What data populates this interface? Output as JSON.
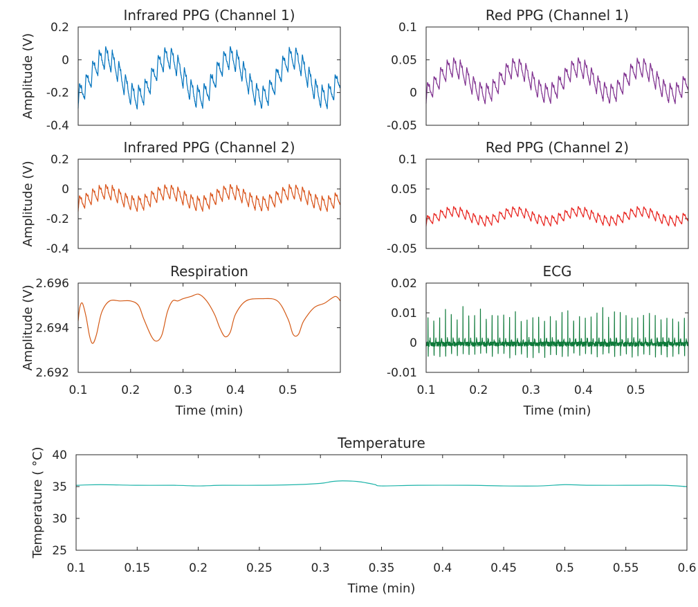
{
  "chart_data": [
    {
      "type": "line",
      "title": "Infrared PPG (Channel 1)",
      "ylabel": "Amplitude (V)",
      "xlabel": "",
      "xlim": [
        0.1,
        0.6
      ],
      "ylim": [
        -0.4,
        0.2
      ],
      "yticks": [
        "0.2",
        "0",
        "-0.2",
        "-0.4"
      ],
      "xticks": [],
      "color": "#0072BD",
      "signal": {
        "beats": 40,
        "respiration_cycles": 4.2,
        "baseline": -0.11,
        "resp_amplitude": 0.12,
        "pulse_amplitude": 0.14
      }
    },
    {
      "type": "line",
      "title": "Red PPG (Channel 1)",
      "ylabel": "",
      "xlabel": "",
      "xlim": [
        0.1,
        0.6
      ],
      "ylim": [
        -0.05,
        0.1
      ],
      "yticks": [
        "0.1",
        "0.05",
        "0",
        "-0.05"
      ],
      "xticks": [],
      "color": "#7E2F8E",
      "signal": {
        "beats": 40,
        "respiration_cycles": 4.2,
        "baseline": 0.018,
        "resp_amplitude": 0.02,
        "pulse_amplitude": 0.03
      }
    },
    {
      "type": "line",
      "title": "Infrared PPG (Channel 2)",
      "ylabel": "Amplitude (V)",
      "xlabel": "",
      "xlim": [
        0.1,
        0.6
      ],
      "ylim": [
        -0.4,
        0.2
      ],
      "yticks": [
        "0.2",
        "0",
        "-0.2",
        "-0.4"
      ],
      "xticks": [],
      "color": "#D95319",
      "signal": {
        "beats": 40,
        "respiration_cycles": 4.2,
        "baseline": -0.06,
        "resp_amplitude": 0.04,
        "pulse_amplitude": 0.1
      }
    },
    {
      "type": "line",
      "title": "Red PPG (Channel 2)",
      "ylabel": "",
      "xlabel": "",
      "xlim": [
        0.1,
        0.6
      ],
      "ylim": [
        -0.05,
        0.1
      ],
      "yticks": [
        "0.1",
        "0.05",
        "0",
        "-0.05"
      ],
      "xticks": [],
      "color": "#E8231E",
      "signal": {
        "beats": 40,
        "respiration_cycles": 4.2,
        "baseline": 0.004,
        "resp_amplitude": 0.008,
        "pulse_amplitude": 0.017
      }
    },
    {
      "type": "line",
      "title": "Respiration",
      "ylabel": "Amplitude (V)",
      "xlabel": "Time (min)",
      "xlim": [
        0.1,
        0.6
      ],
      "ylim": [
        2.692,
        2.696
      ],
      "yticks": [
        "2.696",
        "2.694",
        "2.692"
      ],
      "xticks": [
        "0.1",
        "0.2",
        "0.3",
        "0.4",
        "0.5"
      ],
      "color": "#D45A16",
      "x": [
        0.1,
        0.103,
        0.108,
        0.115,
        0.122,
        0.128,
        0.135,
        0.145,
        0.16,
        0.18,
        0.2,
        0.215,
        0.225,
        0.24,
        0.25,
        0.26,
        0.27,
        0.28,
        0.29,
        0.3,
        0.315,
        0.33,
        0.345,
        0.36,
        0.37,
        0.38,
        0.39,
        0.4,
        0.42,
        0.45,
        0.48,
        0.5,
        0.51,
        0.52,
        0.53,
        0.55,
        0.57,
        0.59,
        0.6
      ],
      "y": [
        2.6943,
        2.6949,
        2.6951,
        2.6945,
        2.6936,
        2.6933,
        2.6937,
        2.6947,
        2.6952,
        2.6952,
        2.6952,
        2.695,
        2.6944,
        2.6936,
        2.6934,
        2.6937,
        2.6947,
        2.6952,
        2.6952,
        2.6953,
        2.6954,
        2.6955,
        2.6952,
        2.6946,
        2.694,
        2.6936,
        2.6938,
        2.6946,
        2.6952,
        2.6953,
        2.6952,
        2.6944,
        2.6937,
        2.6937,
        2.6943,
        2.6949,
        2.6951,
        2.6954,
        2.6952
      ]
    },
    {
      "type": "line",
      "title": "ECG",
      "ylabel": "",
      "xlabel": "Time (min)",
      "xlim": [
        0.1,
        0.6
      ],
      "ylim": [
        -0.01,
        0.02
      ],
      "yticks": [
        "0.02",
        "0.01",
        "0",
        "-0.01"
      ],
      "xticks": [
        "0.1",
        "0.2",
        "0.3",
        "0.4",
        "0.5"
      ],
      "color": "#0E7A3A",
      "signal": {
        "beats": 45,
        "r_peak": 0.012,
        "baseline": -0.0005
      }
    },
    {
      "type": "line",
      "title": "Temperature",
      "ylabel": "Temperature (  °C)",
      "xlabel": "Time (min)",
      "xlim": [
        0.1,
        0.6
      ],
      "ylim": [
        25,
        40
      ],
      "yticks": [
        "40",
        "35",
        "30",
        "25"
      ],
      "xticks": [
        "0.1",
        "0.15",
        "0.2",
        "0.25",
        "0.3",
        "0.35",
        "0.4",
        "0.45",
        "0.5",
        "0.55",
        "0.6"
      ],
      "color": "#1BB3A8",
      "x": [
        0.1,
        0.12,
        0.15,
        0.18,
        0.2,
        0.22,
        0.25,
        0.28,
        0.3,
        0.31,
        0.318,
        0.33,
        0.34,
        0.345,
        0.35,
        0.38,
        0.42,
        0.45,
        0.48,
        0.5,
        0.52,
        0.55,
        0.58,
        0.6
      ],
      "y": [
        35.2,
        35.3,
        35.2,
        35.2,
        35.1,
        35.2,
        35.2,
        35.3,
        35.5,
        35.8,
        35.9,
        35.8,
        35.5,
        35.3,
        35.1,
        35.2,
        35.2,
        35.1,
        35.1,
        35.3,
        35.2,
        35.2,
        35.2,
        35.0
      ]
    }
  ]
}
